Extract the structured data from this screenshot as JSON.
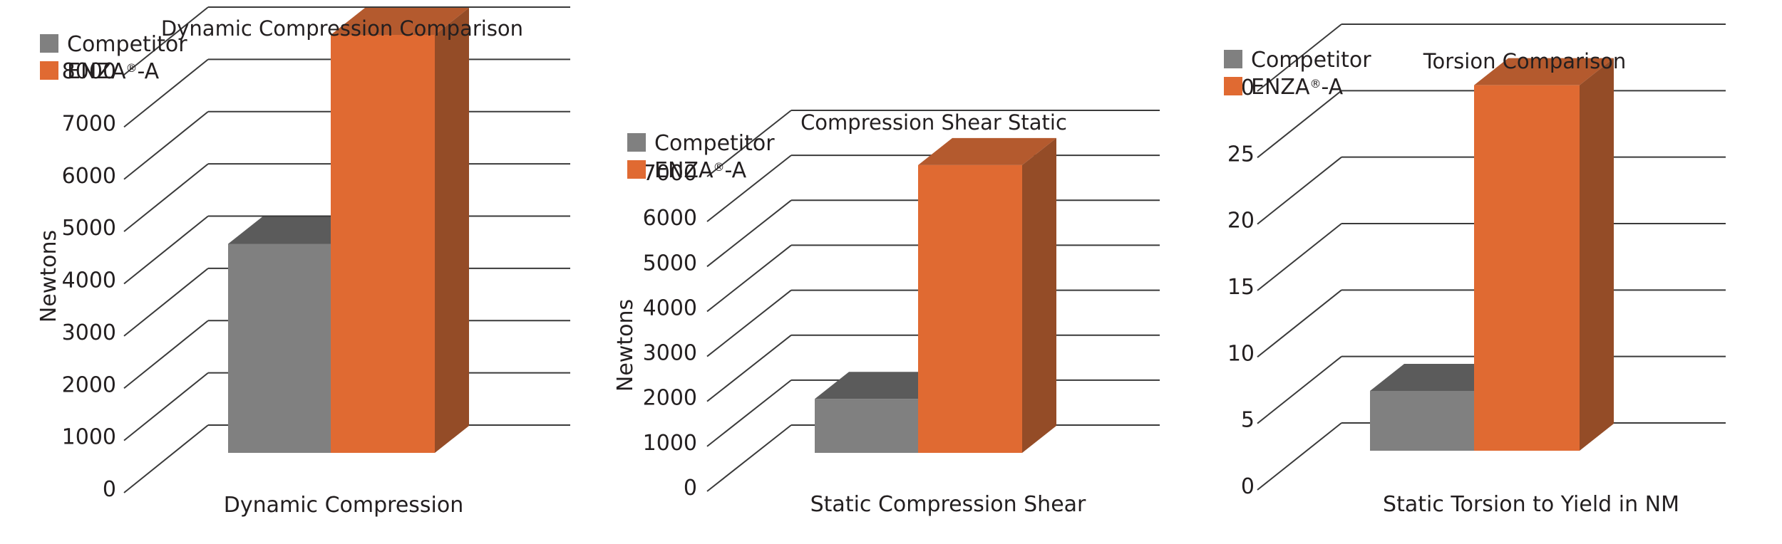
{
  "colors": {
    "competitor": "#808080",
    "competitor_top": "#5b5b5b",
    "enza": "#e06a32",
    "enza_top": "#b45a2e",
    "enza_side": "#944c27",
    "grid": "#3a3a3a"
  },
  "chart_data": [
    {
      "type": "bar",
      "title": "Dynamic Compression Comparison",
      "ylabel": "Newtons",
      "xlabel": "",
      "categories": [
        "Dynamic Compression"
      ],
      "ticks": [
        "0",
        "1000",
        "2000",
        "3000",
        "4000",
        "5000",
        "6000",
        "7000",
        "8000"
      ],
      "ylim": [
        0,
        8000
      ],
      "legend": "top-left",
      "series": [
        {
          "name": "Competitor",
          "name_sup": "",
          "name_tail": "",
          "values": [
            4000
          ]
        },
        {
          "name": "ENZA",
          "name_sup": "®",
          "name_tail": "-A",
          "values": [
            8000
          ]
        }
      ]
    },
    {
      "type": "bar",
      "title": "Compression Shear Static",
      "ylabel": "Newtons",
      "xlabel": "",
      "categories": [
        "Static Compression Shear"
      ],
      "ticks": [
        "0",
        "1000",
        "2000",
        "3000",
        "4000",
        "5000",
        "6000",
        "7000"
      ],
      "ylim": [
        0,
        7000
      ],
      "legend": "top-left",
      "series": [
        {
          "name": "Competitor",
          "name_sup": "",
          "name_tail": "",
          "values": [
            1200
          ]
        },
        {
          "name": "ENZA",
          "name_sup": "®",
          "name_tail": "-A",
          "values": [
            6400
          ]
        }
      ]
    },
    {
      "type": "bar",
      "title": "Torsion Comparison",
      "ylabel": "",
      "xlabel": "",
      "categories": [
        "Static Torsion to Yield in NM"
      ],
      "ticks": [
        "0",
        "5",
        "10",
        "15",
        "20",
        "25",
        "30"
      ],
      "ylim": [
        0,
        30
      ],
      "legend": "top-left",
      "series": [
        {
          "name": "Competitor",
          "name_sup": "",
          "name_tail": "",
          "values": [
            4.5
          ]
        },
        {
          "name": "ENZA",
          "name_sup": "®",
          "name_tail": "-A",
          "values": [
            27.5
          ]
        }
      ]
    }
  ]
}
